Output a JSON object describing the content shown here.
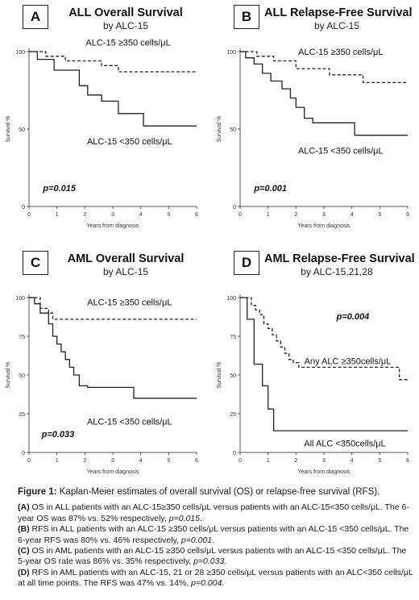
{
  "chart_data": [
    {
      "type": "line",
      "panel": "A",
      "title": "ALL Overall Survival",
      "subtitle": "by ALC-15",
      "xlabel": "Years from diagnosis",
      "ylabel": "Survival %",
      "xlim": [
        0,
        6
      ],
      "ylim": [
        0,
        100
      ],
      "xticks": [
        0,
        1,
        2,
        3,
        4,
        5,
        6
      ],
      "yticks": [
        0,
        50,
        100
      ],
      "pvalue": "p=0.015",
      "series": [
        {
          "name": "ALC-15 ≥350 cells/μL",
          "style": "dashed",
          "x": [
            0,
            0.6,
            0.6,
            1.3,
            1.3,
            2.6,
            2.6,
            3.2,
            3.2,
            6
          ],
          "y": [
            100,
            100,
            97,
            97,
            94,
            94,
            91,
            91,
            87,
            87
          ]
        },
        {
          "name": "ALC-15 <350 cells/μL",
          "style": "solid",
          "x": [
            0,
            0.3,
            0.3,
            0.9,
            0.9,
            1.8,
            1.8,
            2.1,
            2.1,
            2.6,
            2.6,
            3.2,
            3.2,
            4.1,
            4.1,
            6
          ],
          "y": [
            100,
            100,
            95,
            95,
            88,
            88,
            78,
            78,
            72,
            72,
            68,
            68,
            60,
            60,
            52,
            52
          ]
        }
      ]
    },
    {
      "type": "line",
      "panel": "B",
      "title": "ALL Relapse-Free Survival",
      "subtitle": "by ALC-15",
      "xlabel": "Years from diagnosis",
      "ylabel": "Survival %",
      "xlim": [
        0,
        6
      ],
      "ylim": [
        0,
        100
      ],
      "xticks": [
        0,
        1,
        2,
        3,
        4,
        5,
        6
      ],
      "yticks": [
        0,
        50,
        100
      ],
      "pvalue": "p=0.001",
      "series": [
        {
          "name": "ALC-15 ≥350 cells/μL",
          "style": "dashed",
          "x": [
            0,
            0.6,
            0.6,
            1.2,
            1.2,
            2.0,
            2.0,
            3.2,
            3.2,
            4.4,
            4.4,
            6
          ],
          "y": [
            100,
            100,
            97,
            97,
            94,
            94,
            89,
            89,
            85,
            85,
            80,
            80
          ]
        },
        {
          "name": "ALC-15 <350 cells/μL",
          "style": "solid",
          "x": [
            0,
            0.2,
            0.2,
            0.5,
            0.5,
            0.8,
            0.8,
            1.1,
            1.1,
            1.5,
            1.5,
            1.8,
            1.8,
            2.0,
            2.0,
            2.3,
            2.3,
            2.6,
            2.6,
            4.1,
            4.1,
            6
          ],
          "y": [
            100,
            100,
            96,
            96,
            92,
            92,
            86,
            86,
            81,
            81,
            76,
            76,
            70,
            70,
            64,
            64,
            57,
            57,
            54,
            54,
            46,
            46
          ]
        }
      ]
    },
    {
      "type": "line",
      "panel": "C",
      "title": "AML Overall Survival",
      "subtitle": "by ALC-15",
      "xlabel": "Years from diagnosis",
      "ylabel": "Survival %",
      "xlim": [
        0,
        6
      ],
      "ylim": [
        0,
        100
      ],
      "xticks": [
        0,
        1,
        2,
        3,
        4,
        5,
        6
      ],
      "yticks": [
        0,
        25,
        50,
        75,
        100
      ],
      "pvalue": "p=0.033",
      "series": [
        {
          "name": "ALC-15 ≥350 cells/μL",
          "style": "dashed",
          "x": [
            0,
            0.4,
            0.4,
            0.7,
            0.7,
            0.85,
            0.85,
            6
          ],
          "y": [
            100,
            100,
            93,
            93,
            90,
            90,
            86,
            86
          ]
        },
        {
          "name": "ALC-15 <350 cells/μL",
          "style": "solid",
          "x": [
            0,
            0.2,
            0.2,
            0.4,
            0.4,
            0.7,
            0.7,
            0.85,
            0.85,
            1.0,
            1.0,
            1.15,
            1.15,
            1.3,
            1.3,
            1.45,
            1.45,
            1.6,
            1.6,
            1.8,
            1.8,
            2.1,
            2.1,
            3.75,
            3.75,
            6
          ],
          "y": [
            100,
            100,
            96,
            96,
            90,
            90,
            83,
            83,
            75,
            75,
            70,
            70,
            65,
            65,
            60,
            60,
            55,
            55,
            50,
            50,
            43,
            43,
            42,
            42,
            35,
            35
          ]
        }
      ]
    },
    {
      "type": "line",
      "panel": "D",
      "title": "AML Relapse-Free Survival",
      "subtitle": "by ALC-15,21,28",
      "xlabel": "Years from diagnosis",
      "ylabel": "Survival %",
      "xlim": [
        0,
        6
      ],
      "ylim": [
        0,
        100
      ],
      "xticks": [
        0,
        1,
        2,
        3,
        4,
        5,
        6
      ],
      "yticks": [
        0,
        25,
        50,
        75,
        100
      ],
      "pvalue": "p=0.004",
      "series": [
        {
          "name": "Any ALC ≥350cells/μL",
          "style": "dashed",
          "x": [
            0,
            0.4,
            0.4,
            0.55,
            0.55,
            0.7,
            0.7,
            0.85,
            0.85,
            1.0,
            1.0,
            1.15,
            1.15,
            1.3,
            1.3,
            1.45,
            1.45,
            1.6,
            1.6,
            1.75,
            1.75,
            1.9,
            1.9,
            2.1,
            2.1,
            5.7,
            5.7,
            6
          ],
          "y": [
            100,
            100,
            95,
            95,
            92,
            92,
            89,
            89,
            83,
            83,
            80,
            80,
            76,
            76,
            72,
            72,
            68,
            68,
            64,
            64,
            60,
            60,
            58,
            58,
            55,
            55,
            47,
            47
          ]
        },
        {
          "name": "All ALC <350cells/μL",
          "style": "solid",
          "x": [
            0,
            0.25,
            0.25,
            0.5,
            0.5,
            0.8,
            0.8,
            1.0,
            1.0,
            1.2,
            1.2,
            6
          ],
          "y": [
            100,
            100,
            86,
            86,
            57,
            57,
            43,
            43,
            28,
            28,
            14,
            14
          ]
        }
      ]
    }
  ],
  "caption": {
    "title_bold": "Figure 1:",
    "title_rest": " Kaplan-Meier estimates of  overall survival (OS) or relapse-free survival (RFS).",
    "items": [
      {
        "tag": "(A)",
        "text": " OS in ALL patients with an ALC-15≥350 cells/μL versus patients with an ALC-15<350 cells/μL. The 6-year OS was 87% vs. 52% respectively, ",
        "p": "p=0.015",
        "end": "."
      },
      {
        "tag": "(B)",
        "text": " RFS in ALL patients with an ALC-15 ≥350 cells/μL versus patients with an ALC-15 <350 cells/μL. The 6-year RFS was 80% vs. 46% respectively, ",
        "p": "p=0.001",
        "end": "."
      },
      {
        "tag": "(C)",
        "text": " OS in AML patients with an ALC-15 ≥350 cells/μL versus patients with an ALC-15 <350 cells/μL. The 5-year OS rate was 86% vs. 35% respectively, ",
        "p": "p=0.033",
        "end": "."
      },
      {
        "tag": "(D)",
        "text": " RFS in AML patients with an ALC-15, 21 or 28 ≥350 cells/μL versus patients with an ALC<350 cells/μL at all time points. The RFS was 47% vs. 14%, ",
        "p": "p=0.004",
        "end": "."
      }
    ]
  }
}
